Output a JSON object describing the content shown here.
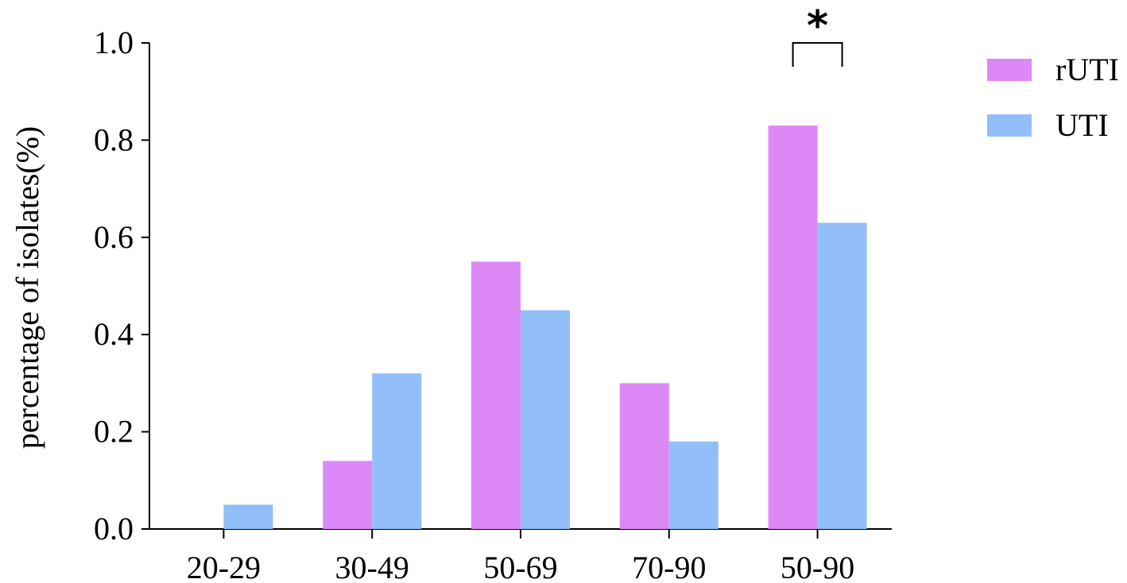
{
  "chart_data": {
    "type": "bar",
    "title": "",
    "xlabel": "",
    "ylabel": "percentage of isolates(%)",
    "categories": [
      "20-29",
      "30-49",
      "50-69",
      "70-90",
      "50-90"
    ],
    "series": [
      {
        "name": "rUTI",
        "color": "#DD88F7",
        "values": [
          0,
          0.14,
          0.55,
          0.3,
          0.83
        ]
      },
      {
        "name": "UTI",
        "color": "#92BFF8",
        "values": [
          0.05,
          0.32,
          0.45,
          0.18,
          0.63
        ]
      }
    ],
    "ylim": [
      0,
      1.0
    ],
    "yticks": [
      "0.0",
      "0.2",
      "0.4",
      "0.6",
      "0.8",
      "1.0"
    ],
    "grid": false,
    "legend": "top-right",
    "annotations": [
      {
        "category": "50-90",
        "text": "*",
        "type": "significance-bracket"
      }
    ]
  }
}
